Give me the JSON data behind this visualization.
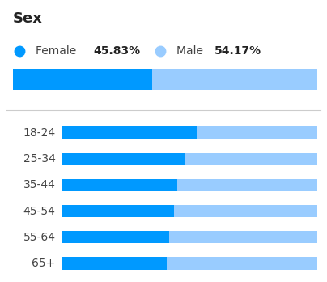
{
  "title": "Sex",
  "legend": [
    {
      "label": "Female",
      "pct": "45.83%",
      "color": "#0099FF"
    },
    {
      "label": "Male",
      "pct": "54.17%",
      "color": "#99CCFF"
    }
  ],
  "overall": {
    "female": 45.83,
    "male": 54.17
  },
  "age_groups": [
    "18-24",
    "25-34",
    "35-44",
    "45-54",
    "55-64",
    "65+"
  ],
  "female_pct": [
    53.0,
    48.0,
    45.0,
    44.0,
    42.0,
    41.0
  ],
  "female_color": "#0099FF",
  "male_color": "#99CCFF",
  "background_color": "#FFFFFF",
  "title_fontsize": 13,
  "tick_fontsize": 10,
  "separator_color": "#CCCCCC"
}
